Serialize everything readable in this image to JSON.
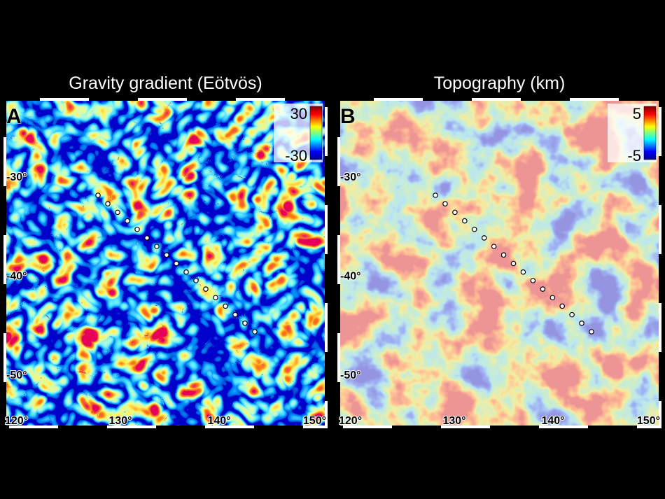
{
  "panels": [
    {
      "letter": "A",
      "title": "Gravity gradient (Eötvös)",
      "colorbar": {
        "max": "30",
        "min": "-30"
      },
      "lat_labels": [
        "-30°",
        "-40°",
        "-50°"
      ],
      "lon_labels": [
        "120°",
        "130°",
        "140°",
        "150°"
      ]
    },
    {
      "letter": "B",
      "title": "Topography (km)",
      "colorbar": {
        "max": "5",
        "min": "-5"
      },
      "lat_labels": [
        "-30°",
        "-40°",
        "-50°"
      ],
      "lon_labels": [
        "120°",
        "130°",
        "140°",
        "150°"
      ]
    }
  ]
}
